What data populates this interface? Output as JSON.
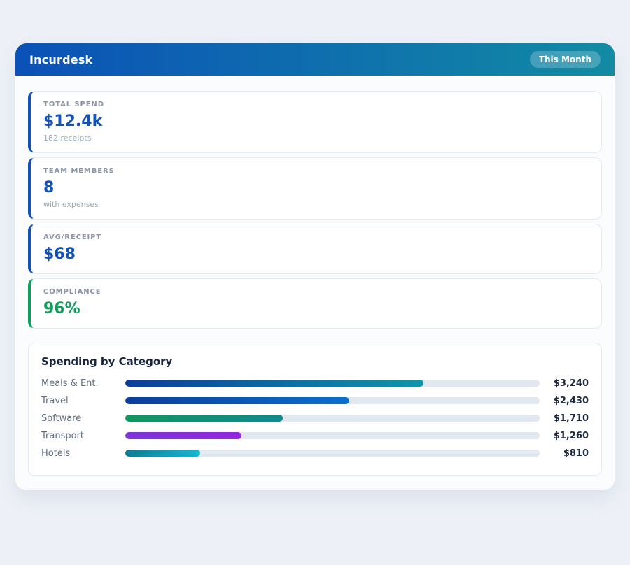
{
  "app": {
    "title": "Incurdesk",
    "period_badge": "This Month"
  },
  "colors": {
    "header_gradient_start": "#0b51b7",
    "header_gradient_end": "#128ba4",
    "page_background": "#edf1f7",
    "accent_blue": "#1353b6",
    "accent_green": "#0fa05e",
    "bar_track": "#e2e8f0"
  },
  "stats": [
    {
      "label": "TOTAL SPEND",
      "value": "$12.4k",
      "subtitle": "182 receipts",
      "accent": "#1353b6"
    },
    {
      "label": "TEAM MEMBERS",
      "value": "8",
      "subtitle": "with expenses",
      "accent": "#1353b6"
    },
    {
      "label": "AVG/RECEIPT",
      "value": "$68",
      "accent": "#1353b6"
    },
    {
      "label": "COMPLIANCE",
      "value": "96%",
      "accent": "#0fa05e"
    }
  ],
  "chart_data": {
    "type": "bar",
    "orientation": "horizontal",
    "title": "Spending by Category",
    "categories": [
      "Meals & Ent.",
      "Travel",
      "Software",
      "Transport",
      "Hotels"
    ],
    "values": [
      3240,
      2430,
      1710,
      1260,
      810
    ],
    "value_labels": [
      "$3,240",
      "$2,430",
      "$1,710",
      "$1,260",
      "$810"
    ],
    "xlim": [
      0,
      4500
    ],
    "grid": false,
    "legend": false,
    "bar_gradients": [
      [
        "#0b3d9b",
        "#0d97a8"
      ],
      [
        "#0b3d9b",
        "#0a6fd0"
      ],
      [
        "#12965e",
        "#11898f"
      ],
      [
        "#7b35d8",
        "#9326df"
      ],
      [
        "#0f7a93",
        "#16b8d0"
      ]
    ]
  }
}
